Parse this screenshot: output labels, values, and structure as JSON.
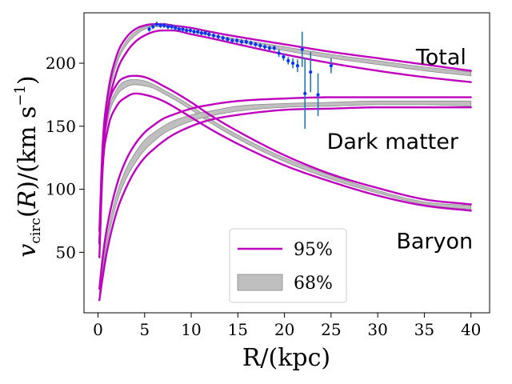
{
  "chart_data": {
    "type": "line",
    "title": "",
    "xlabel": "R/(kpc)",
    "ylabel": "v_circ(R)/(km s^-1)",
    "xlim": [
      -1.5,
      42
    ],
    "ylim": [
      2,
      240
    ],
    "xticks": [
      0,
      5,
      10,
      15,
      20,
      25,
      30,
      35,
      40
    ],
    "yticks": [
      50,
      100,
      150,
      200
    ],
    "grid": false,
    "legend": {
      "position": "bottom-center",
      "entries": [
        {
          "label": "95%",
          "style": "line",
          "color": "#bf00bf"
        },
        {
          "label": "68%",
          "style": "band",
          "color": "#bfbfbf"
        }
      ]
    },
    "annotations": [
      {
        "text": "Total",
        "x": 36.8,
        "y": 199
      },
      {
        "text": "Dark matter",
        "x": 31.6,
        "y": 132
      },
      {
        "text": "Baryon",
        "x": 36.1,
        "y": 53
      }
    ],
    "colors": {
      "band_fill": "#bfbfbf",
      "band_edge": "#8c8c8c",
      "line95": "#bf00bf",
      "data": "#1f77b4",
      "marker": "#0033ff"
    },
    "series": [
      {
        "name": "Total",
        "x": [
          0.15,
          0.5,
          1,
          2,
          3,
          4,
          5,
          6,
          7,
          8,
          10,
          12,
          15,
          20,
          25,
          30,
          35,
          40
        ],
        "band68_low": [
          62,
          128,
          166,
          199,
          214,
          222,
          227,
          229,
          229,
          228,
          225,
          222,
          217,
          210,
          204,
          199,
          194,
          190
        ],
        "band68_high": [
          64,
          131,
          169,
          202,
          217,
          225,
          229,
          230,
          230,
          229,
          226,
          223,
          219,
          213,
          207,
          202,
          197,
          193
        ],
        "line95_low": [
          57,
          122,
          160,
          193,
          208,
          217,
          222,
          225,
          226,
          226,
          223,
          220,
          215,
          207,
          200,
          194,
          189,
          185
        ],
        "line95_high": [
          67,
          135,
          173,
          206,
          220,
          227,
          230,
          231,
          231,
          230,
          228,
          225,
          221,
          215,
          209,
          204,
          199,
          194
        ]
      },
      {
        "name": "Baryon",
        "x": [
          0.15,
          0.5,
          1,
          2,
          3,
          4,
          5,
          6,
          7,
          8,
          10,
          12,
          15,
          20,
          25,
          30,
          35,
          40
        ],
        "band68_low": [
          51,
          121,
          153,
          174,
          181,
          183,
          182,
          180,
          176,
          172,
          163,
          153,
          140,
          122,
          108,
          97,
          88,
          84
        ],
        "band68_high": [
          53,
          123,
          157,
          179,
          186,
          187,
          186,
          183,
          179,
          175,
          166,
          156,
          143,
          125,
          111,
          99,
          90,
          87
        ],
        "line95_low": [
          46,
          116,
          146,
          166,
          173,
          176,
          175,
          173,
          170,
          166,
          157,
          148,
          136,
          119,
          106,
          95,
          87,
          83
        ],
        "line95_high": [
          57,
          127,
          162,
          183,
          189,
          190,
          189,
          186,
          182,
          178,
          169,
          159,
          146,
          127,
          112,
          101,
          92,
          88
        ]
      },
      {
        "name": "Dark matter",
        "x": [
          0.15,
          0.5,
          1,
          2,
          3,
          4,
          5,
          6,
          7,
          8,
          10,
          12,
          15,
          20,
          25,
          30,
          35,
          40
        ],
        "band68_low": [
          16,
          36,
          58,
          89,
          108,
          121,
          131,
          138,
          144,
          148,
          154,
          158,
          162,
          165,
          166,
          167,
          167,
          166
        ],
        "band68_high": [
          18,
          40,
          64,
          96,
          116,
          129,
          139,
          145,
          150,
          154,
          159,
          162,
          166,
          168,
          169,
          170,
          170,
          170
        ],
        "line95_low": [
          12,
          30,
          52,
          82,
          101,
          115,
          125,
          132,
          138,
          143,
          150,
          155,
          159,
          163,
          164,
          165,
          165,
          165
        ],
        "line95_high": [
          21,
          46,
          71,
          103,
          123,
          136,
          145,
          151,
          156,
          159,
          164,
          167,
          170,
          172,
          173,
          173,
          173,
          173
        ]
      },
      {
        "name": "Observed",
        "x": [
          5.5,
          5.9,
          6.3,
          6.7,
          7.1,
          7.5,
          7.9,
          8.3,
          8.7,
          9.1,
          9.5,
          9.9,
          10.3,
          10.7,
          11.1,
          11.5,
          11.9,
          12.4,
          12.9,
          13.4,
          13.9,
          14.4,
          14.9,
          15.4,
          15.9,
          16.4,
          16.9,
          17.4,
          17.9,
          18.4,
          18.9,
          19.4,
          19.9,
          20.4,
          20.9,
          21.4,
          21.9,
          22.2,
          22.8,
          23.6,
          25.0
        ],
        "y": [
          227,
          229,
          231,
          230,
          230,
          229,
          229,
          228,
          227,
          227,
          226,
          226,
          225,
          225,
          224,
          224,
          223,
          222,
          221,
          220,
          219,
          218,
          218,
          217,
          217,
          216,
          215,
          214,
          213,
          212,
          212,
          208,
          205,
          202,
          200,
          198,
          211,
          176,
          193,
          175,
          198
        ],
        "yerr": [
          2,
          2,
          2,
          2,
          2,
          2,
          2,
          2,
          2,
          2,
          2,
          2,
          2,
          2,
          2,
          2,
          2,
          2,
          2,
          2,
          2,
          2,
          2,
          2,
          2,
          2,
          2,
          2,
          2,
          2,
          2,
          3,
          3,
          3,
          4,
          5,
          14,
          28,
          16,
          17,
          6
        ]
      }
    ]
  }
}
